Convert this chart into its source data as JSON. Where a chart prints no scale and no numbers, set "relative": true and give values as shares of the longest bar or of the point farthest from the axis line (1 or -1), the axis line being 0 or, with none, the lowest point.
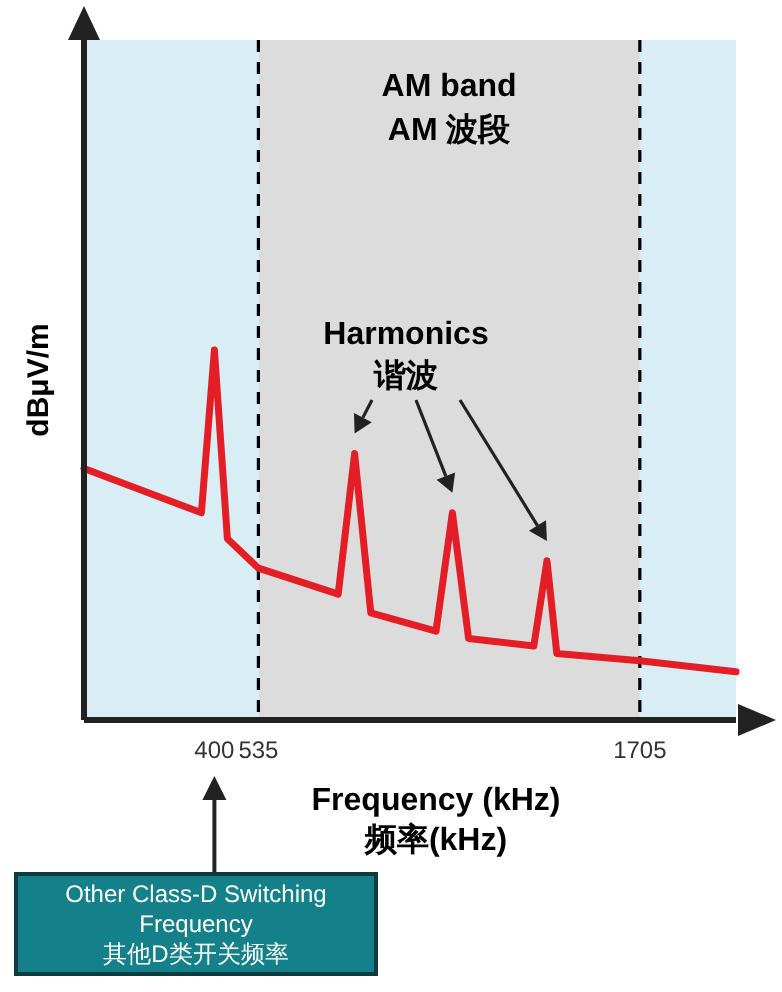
{
  "chart_data": {
    "type": "line",
    "relative": true,
    "xlabel": "Frequency (kHz)\n频率(kHz)",
    "ylabel": "dBμV/m",
    "xlim": [
      0,
      2000
    ],
    "xticks": [
      400,
      535,
      1705
    ],
    "x": [
      0,
      360,
      400,
      440,
      535,
      780,
      830,
      880,
      1080,
      1130,
      1180,
      1380,
      1420,
      1450,
      1705,
      2000
    ],
    "series": [
      {
        "color": "#e41e26",
        "values": [
          0.68,
          0.56,
          1.0,
          0.49,
          0.41,
          0.34,
          0.72,
          0.29,
          0.24,
          0.56,
          0.22,
          0.2,
          0.43,
          0.18,
          0.16,
          0.13
        ]
      }
    ],
    "line_style": "solid",
    "marker": "none",
    "legend": false,
    "grid": false,
    "bands": [
      {
        "axis": "x",
        "from": 0,
        "to": 535,
        "color": "#d8eef4"
      },
      {
        "axis": "x",
        "from": 535,
        "to": 1705,
        "color": "#dcdcdc",
        "label": "AM band\nAM 波段"
      },
      {
        "axis": "x",
        "from": 1705,
        "to": 2000,
        "color": "#d8eef4"
      }
    ],
    "ref_lines": [
      {
        "axis": "x",
        "value": 535,
        "line_style": "dashed",
        "color": "#000000"
      },
      {
        "axis": "x",
        "value": 1705,
        "line_style": "dashed",
        "color": "#000000"
      }
    ],
    "annotations": [
      "Harmonics\n谐波",
      "Other Class-D Switching Frequency\n其他D类开关频率"
    ]
  }
}
